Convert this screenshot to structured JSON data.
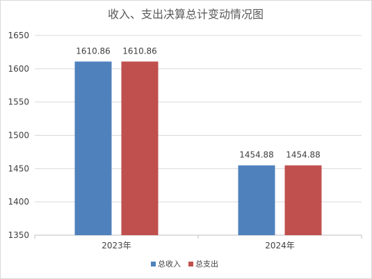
{
  "chart_data": {
    "type": "bar",
    "title": "收入、支出决算总计变动情况图",
    "categories": [
      "2023年",
      "2024年"
    ],
    "series": [
      {
        "name": "总收入",
        "values": [
          1610.86,
          1454.88
        ],
        "color": "#4f81bd"
      },
      {
        "name": "总支出",
        "values": [
          1610.86,
          1454.88
        ],
        "color": "#c0504d"
      }
    ],
    "data_labels": [
      [
        "1610.86",
        "1454.88"
      ],
      [
        "1610.86",
        "1454.88"
      ]
    ],
    "ylim": [
      1350,
      1650
    ],
    "yticks": [
      1350,
      1400,
      1450,
      1500,
      1550,
      1600,
      1650
    ],
    "grid": true,
    "legend": "bottom"
  }
}
